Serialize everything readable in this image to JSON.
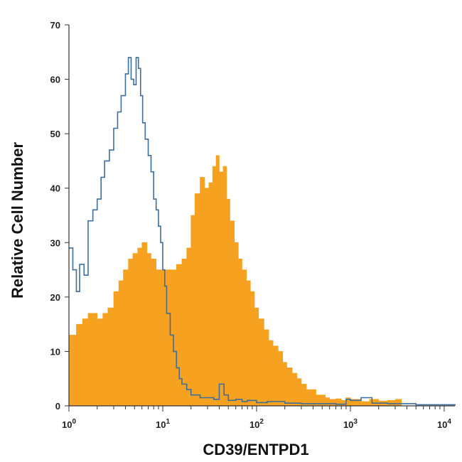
{
  "chart_data": {
    "type": "area",
    "xlabel": "CD39/ENTPD1",
    "ylabel": "Relative Cell Number",
    "x_scale": "log",
    "xlim": [
      1,
      13000
    ],
    "ylim": [
      0,
      70
    ],
    "x_ticks": [
      {
        "value": 1,
        "base": "10",
        "exp": "0"
      },
      {
        "value": 10,
        "base": "10",
        "exp": "1"
      },
      {
        "value": 100,
        "base": "10",
        "exp": "2"
      },
      {
        "value": 1000,
        "base": "10",
        "exp": "3"
      },
      {
        "value": 10000,
        "base": "10",
        "exp": "4"
      }
    ],
    "y_ticks": [
      0,
      10,
      20,
      30,
      40,
      50,
      60,
      70
    ],
    "grid": false,
    "legend": "none",
    "series": [
      {
        "style": "filled",
        "color": "#F6A11F",
        "x": [
          1.0,
          1.2,
          1.4,
          1.6,
          1.8,
          2.0,
          2.3,
          2.6,
          3.0,
          3.4,
          3.8,
          4.3,
          4.8,
          5.4,
          6.0,
          6.8,
          7.5,
          8.5,
          9.5,
          11,
          12.5,
          14,
          16,
          18,
          20,
          22,
          25,
          28,
          31,
          34,
          37,
          40,
          44,
          48,
          52,
          58,
          64,
          70,
          78,
          86,
          95,
          105,
          120,
          135,
          150,
          170,
          190,
          210,
          240,
          270,
          300,
          340,
          380,
          430,
          480,
          540,
          600,
          700,
          800,
          900,
          1000,
          1300,
          1600,
          2000,
          2500,
          3000,
          3500
        ],
        "y": [
          13,
          15,
          16,
          17,
          17,
          16,
          17,
          18,
          21,
          23,
          25,
          27,
          28,
          29,
          30,
          28,
          27,
          25,
          25,
          25,
          25,
          26,
          27,
          29,
          35,
          39,
          42,
          40,
          41,
          44,
          46,
          43,
          44,
          38,
          34,
          30,
          27,
          25,
          23,
          21,
          18,
          16,
          14,
          12,
          11,
          10,
          8,
          7,
          6,
          5,
          4,
          3,
          3,
          2,
          2,
          1.5,
          1.2,
          1.3,
          1.0,
          1.5,
          1.2,
          0.8,
          1.2,
          0.9,
          1.0,
          1.2,
          0
        ]
      },
      {
        "style": "outline",
        "color": "#3E6E9A",
        "x": [
          1.0,
          1.1,
          1.2,
          1.3,
          1.45,
          1.6,
          1.8,
          2.0,
          2.2,
          2.4,
          2.7,
          3.0,
          3.3,
          3.6,
          4.0,
          4.3,
          4.6,
          4.9,
          5.2,
          5.5,
          5.8,
          6.1,
          6.5,
          7.0,
          7.5,
          8.0,
          8.5,
          9.0,
          9.5,
          10,
          10.5,
          11,
          12,
          13,
          14,
          15,
          16,
          18,
          20,
          25,
          30,
          35,
          40,
          45,
          50,
          60,
          70,
          80,
          100,
          130,
          200,
          300,
          500,
          700,
          900,
          1000,
          1300,
          1700,
          2500,
          5000,
          13000
        ],
        "y": [
          29,
          25,
          21,
          26,
          24,
          34,
          36,
          38,
          42,
          45,
          47,
          51,
          54,
          57,
          61,
          64,
          60,
          59,
          64,
          62,
          57,
          52,
          49,
          46,
          43,
          38,
          36,
          33,
          30,
          25,
          22,
          17,
          13,
          10,
          7,
          5,
          4,
          3,
          2,
          1.5,
          1.5,
          1.2,
          4,
          2,
          1,
          1.2,
          0.8,
          1.0,
          0.6,
          0.8,
          0.5,
          0.4,
          0.4,
          0.3,
          1.2,
          1.0,
          1.5,
          0.5,
          0.4,
          0.2,
          0
        ]
      }
    ]
  }
}
